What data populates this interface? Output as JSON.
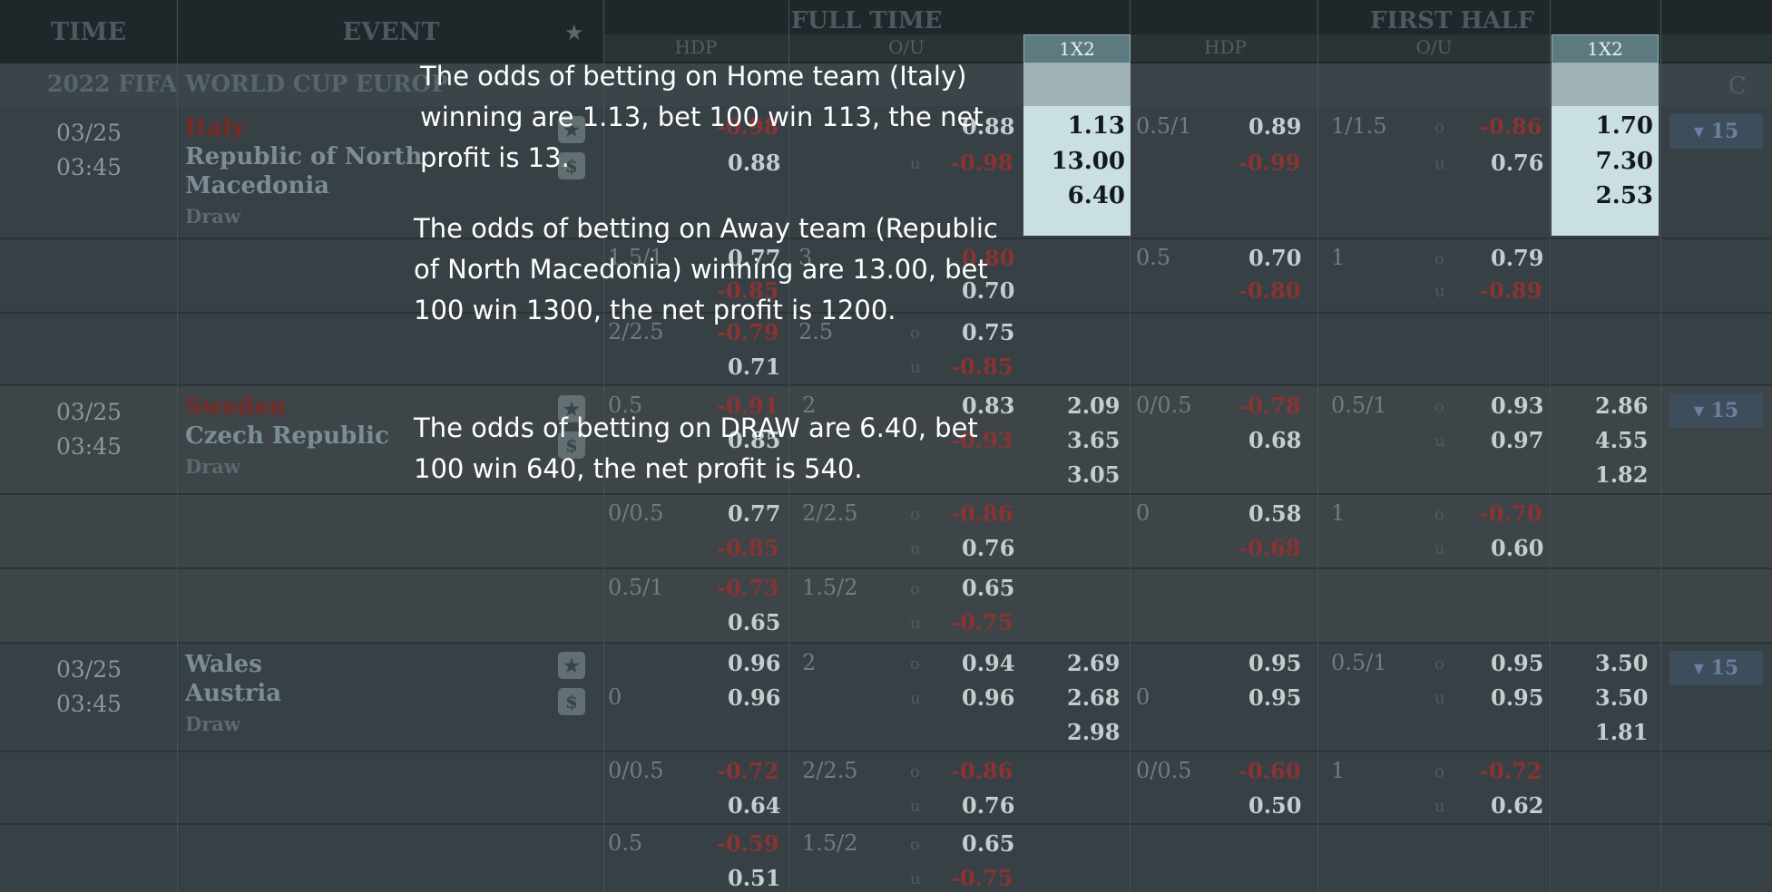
{
  "header": {
    "time": "TIME",
    "event": "EVENT",
    "full_time": "FULL TIME",
    "first_half": "FIRST HALF",
    "hdp": "HDP",
    "ou": "O/U",
    "x12": "1X2"
  },
  "league": {
    "name": "2022 FIFA WORLD CUP EUROP"
  },
  "matches": [
    {
      "date": "03/25",
      "time": "03:45",
      "home": "Italy",
      "away_line1": "Republic of North",
      "away_line2": "Macedonia",
      "draw": "Draw",
      "ft_1x2": [
        "1.13",
        "13.00",
        "6.40"
      ],
      "ft_ou_main": [
        "0.88",
        "-0.98"
      ],
      "ft_hdp_main_bottom": "0.88",
      "fh_hdp_line": "0.5/1",
      "fh_hdp": [
        "0.89",
        "-0.99"
      ],
      "fh_ou_line": "1/1.5",
      "fh_ou": [
        "-0.86",
        "0.76"
      ],
      "fh_1x2": [
        "1.70",
        "7.30",
        "2.53"
      ],
      "badge": "▾ 15",
      "alt": [
        {
          "hdp_line": "1.5/1",
          "hdp": [
            "0.77",
            "-0.85"
          ],
          "ou_line": "3",
          "ou": [
            "0.80",
            "0.70"
          ],
          "fh_hdp_line": "0.5",
          "fh_hdp": [
            "0.70",
            "-0.80"
          ],
          "fh_ou_line": "1",
          "fh_ou": [
            "0.79",
            "-0.89"
          ]
        },
        {
          "hdp_line": "2/2.5",
          "hdp": [
            "-0.79",
            "0.71"
          ],
          "ou_line": "2.5",
          "ou": [
            "0.75",
            "-0.85"
          ]
        }
      ]
    },
    {
      "date": "03/25",
      "time": "03:45",
      "home": "Sweden",
      "away_line1": "Czech Republic",
      "away_line2": "",
      "draw": "Draw",
      "hdp_line": "0.5",
      "hdp": [
        "-0.91",
        "0.85"
      ],
      "ou_line": "2",
      "ou": [
        "0.83",
        "-0.93"
      ],
      "ft_1x2": [
        "2.09",
        "3.65",
        "3.05"
      ],
      "fh_hdp_line": "0/0.5",
      "fh_hdp": [
        "-0.78",
        "0.68"
      ],
      "fh_ou_line": "0.5/1",
      "fh_ou": [
        "0.93",
        "0.97"
      ],
      "fh_1x2": [
        "2.86",
        "4.55",
        "1.82"
      ],
      "badge": "▾ 15",
      "alt": [
        {
          "hdp_line": "0/0.5",
          "hdp": [
            "0.77",
            "-0.85"
          ],
          "ou_line": "2/2.5",
          "ou": [
            "-0.86",
            "0.76"
          ],
          "fh_hdp_line": "0",
          "fh_hdp": [
            "0.58",
            "-0.68"
          ],
          "fh_ou_line": "1",
          "fh_ou": [
            "-0.70",
            "0.60"
          ]
        },
        {
          "hdp_line": "0.5/1",
          "hdp": [
            "-0.73",
            "0.65"
          ],
          "ou_line": "1.5/2",
          "ou": [
            "0.65",
            "-0.75"
          ]
        }
      ]
    },
    {
      "date": "03/25",
      "time": "03:45",
      "home": "Wales",
      "away_line1": "Austria",
      "away_line2": "",
      "draw": "Draw",
      "hdp_line": "0",
      "hdp": [
        "0.96",
        "0.96"
      ],
      "ou_line": "2",
      "ou": [
        "0.94",
        "0.96"
      ],
      "ft_1x2": [
        "2.69",
        "2.68",
        "2.98"
      ],
      "fh_hdp_line": "0",
      "fh_hdp": [
        "0.95",
        "0.95"
      ],
      "fh_ou_line": "0.5/1",
      "fh_ou": [
        "0.95",
        "0.95"
      ],
      "fh_1x2": [
        "3.50",
        "3.50",
        "1.81"
      ],
      "badge": "▾ 15",
      "alt": [
        {
          "hdp_line": "0/0.5",
          "hdp": [
            "-0.72",
            "0.64"
          ],
          "ou_line": "2/2.5",
          "ou": [
            "-0.86",
            "0.76"
          ],
          "fh_hdp_line": "0/0.5",
          "fh_hdp": [
            "-0.60",
            "0.50"
          ],
          "fh_ou_line": "1",
          "fh_ou": [
            "-0.72",
            "0.62"
          ]
        },
        {
          "hdp_line": "0.5",
          "hdp": [
            "-0.59",
            "0.51"
          ],
          "ou_line": "1.5/2",
          "ou": [
            "0.65",
            "-0.75"
          ]
        }
      ]
    }
  ],
  "ou_labels": {
    "over": "o",
    "under": "u"
  },
  "icons": {
    "star": "star-icon",
    "dollar": "dollar-icon"
  },
  "annotations": {
    "home": "The odds of betting on Home team (Italy) winning are 1.13, bet 100 win 113, the net profit is 13.",
    "away": "The odds of betting on Away team (Republic of North Macedonia) winning are 13.00, bet 100 win 1300, the net profit is 1200.",
    "draw": "The odds of betting on DRAW are 6.40, bet 100 win 640, the net profit is 540."
  }
}
